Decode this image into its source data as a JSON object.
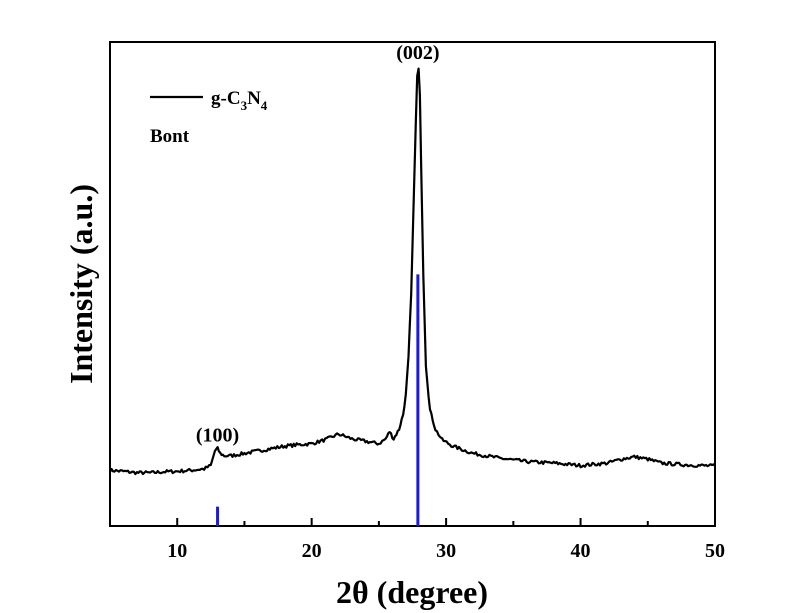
{
  "chart_data": {
    "type": "line",
    "xlabel": "2θ (degree)",
    "ylabel": "Intensity (a.u.)",
    "xlim": [
      5,
      50
    ],
    "ylim": [
      0,
      100
    ],
    "xticks": [
      10,
      20,
      30,
      40,
      50
    ],
    "xtick_labels": [
      "10",
      "20",
      "30",
      "40",
      "50"
    ],
    "yticks_shown": false,
    "grid": false,
    "legend": {
      "placement": "top-left",
      "entries": [
        {
          "name": "g-C3N4",
          "name_base": "g-C",
          "sub1": "3",
          "mid": "N",
          "sub2": "4",
          "style": "line",
          "color": "#000000"
        },
        {
          "name": "Bont",
          "style": "none"
        }
      ]
    },
    "annotations": [
      {
        "text": "(100)",
        "x": 13.0,
        "y": 17.5
      },
      {
        "text": "(002)",
        "x": 27.9,
        "y": 96.5
      }
    ],
    "series": [
      {
        "name": "g-C3N4",
        "color": "#000000",
        "x": [
          5,
          6,
          7,
          8,
          9,
          10,
          11,
          12,
          12.5,
          12.8,
          13.0,
          13.2,
          13.5,
          14,
          15,
          16,
          17,
          18,
          19,
          20,
          21,
          22,
          23,
          24,
          25,
          25.5,
          25.8,
          26.1,
          26.5,
          26.8,
          27.0,
          27.2,
          27.4,
          27.6,
          27.75,
          27.85,
          27.95,
          28.05,
          28.15,
          28.3,
          28.5,
          28.8,
          29.2,
          29.7,
          30.5,
          32,
          34,
          36,
          38,
          40,
          42,
          43,
          44,
          45,
          46,
          48,
          50
        ],
        "y": [
          11.5,
          11.3,
          11.0,
          11.0,
          11.2,
          11.3,
          11.5,
          11.8,
          12.5,
          15.5,
          16.0,
          15.0,
          14.5,
          14.5,
          15.0,
          15.5,
          16.0,
          16.5,
          16.8,
          17.0,
          17.8,
          19.0,
          18.0,
          17.5,
          17.0,
          18.0,
          19.5,
          18.0,
          20.0,
          23.0,
          27.0,
          35.0,
          48.0,
          68.0,
          84.0,
          93.0,
          94.5,
          89.0,
          74.0,
          52.0,
          33.0,
          24.0,
          20.0,
          17.8,
          16.5,
          15.0,
          14.0,
          13.3,
          13.0,
          12.5,
          13.0,
          13.8,
          14.3,
          13.8,
          13.0,
          12.6,
          12.4
        ]
      }
    ],
    "reference_lines": {
      "name": "Bont",
      "color": "#1a1adc",
      "peaks": [
        {
          "x": 13.0,
          "height": 4.0
        },
        {
          "x": 27.9,
          "height": 52.0
        }
      ]
    }
  }
}
